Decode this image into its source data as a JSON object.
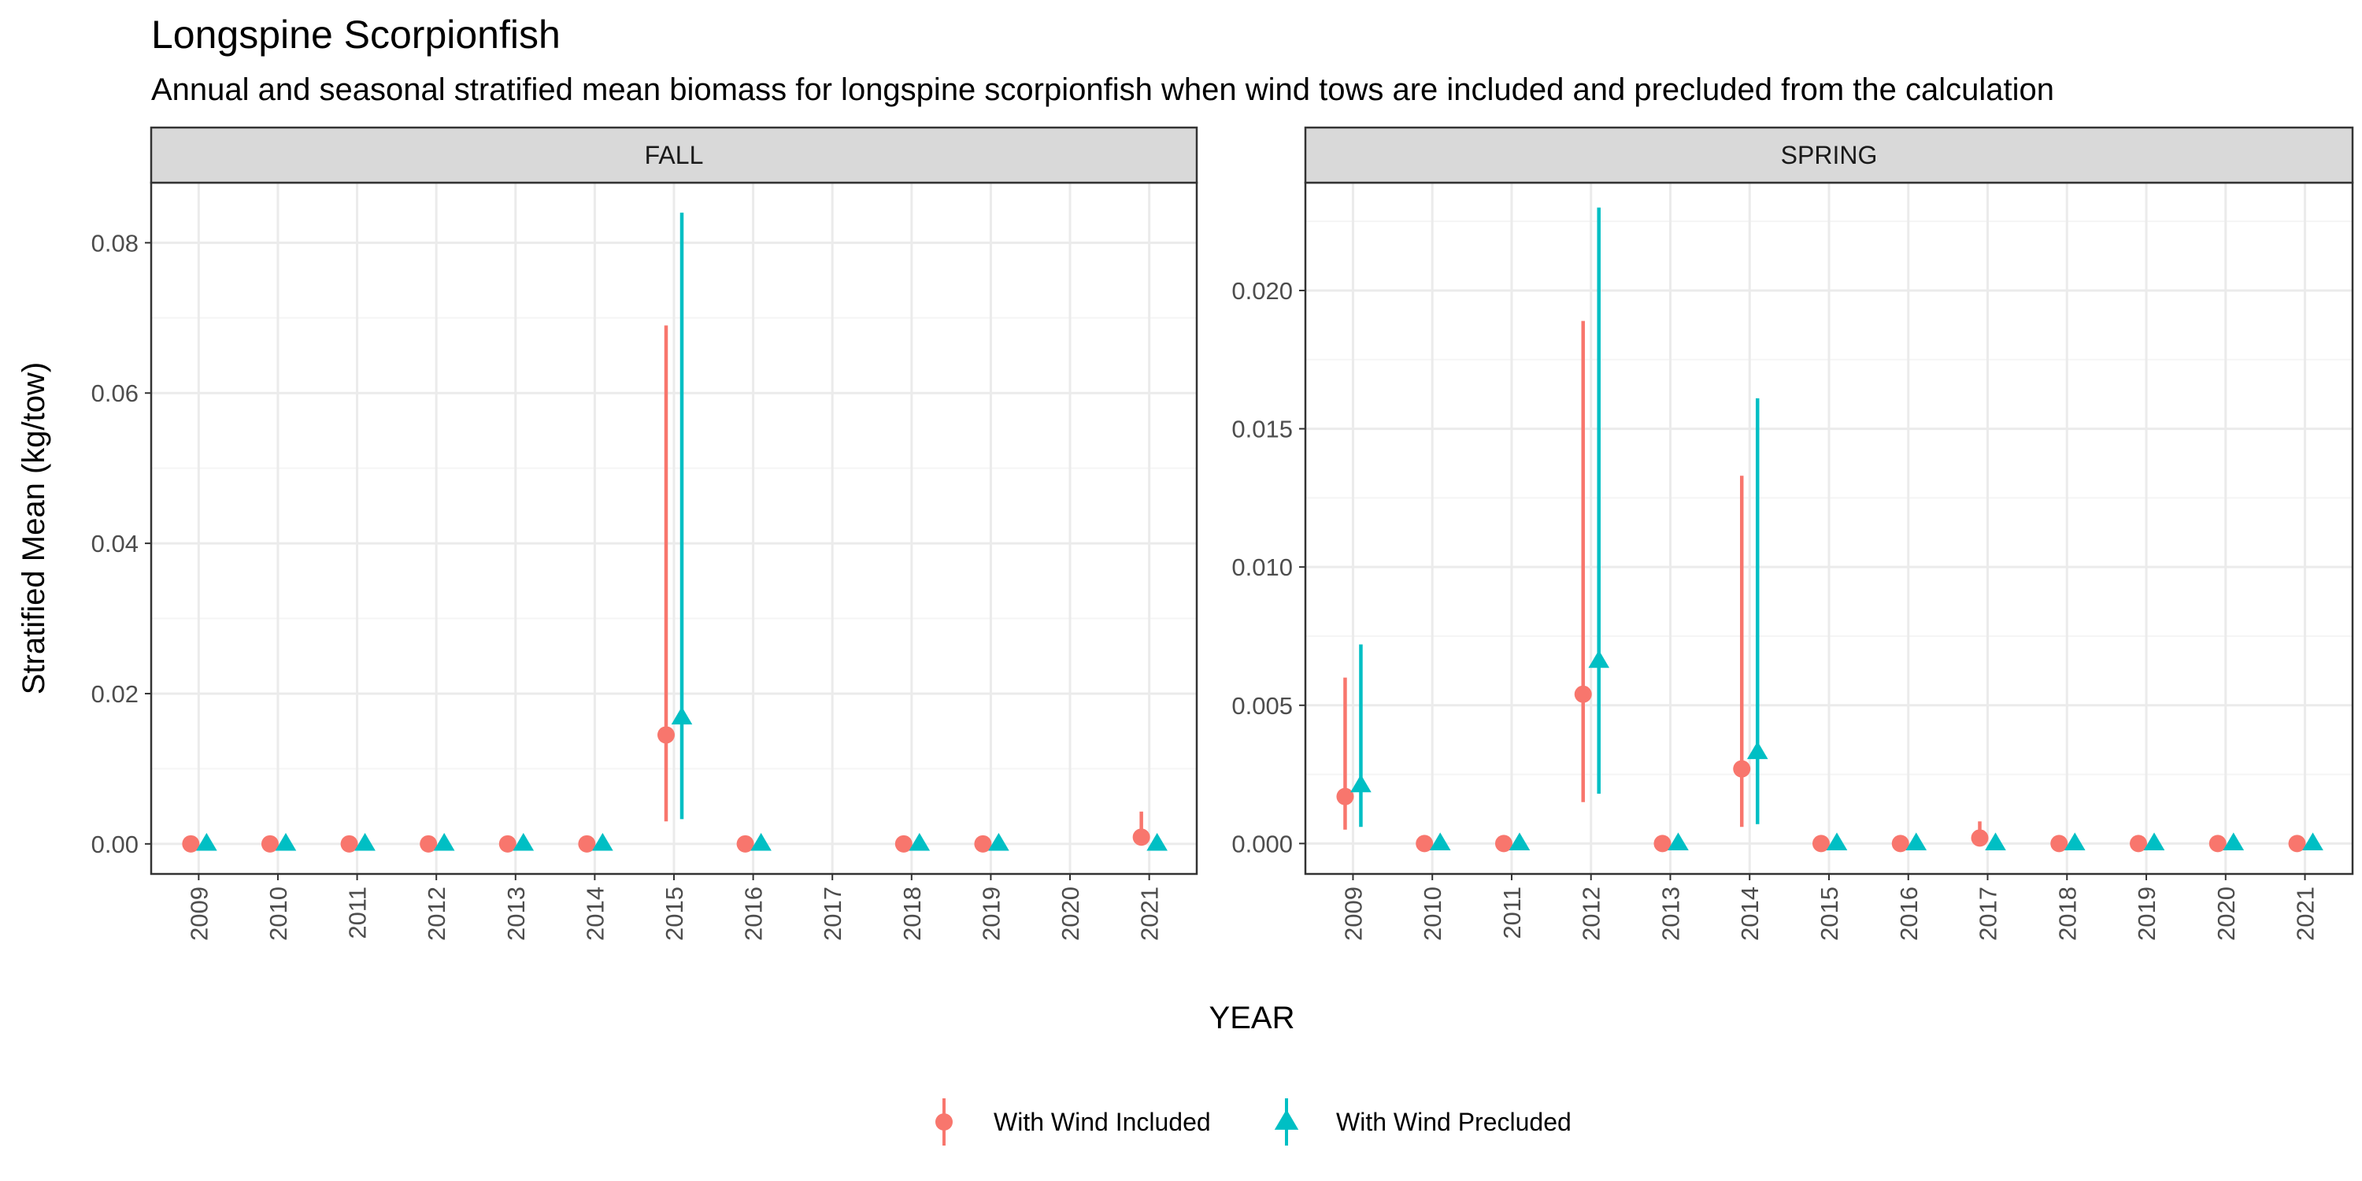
{
  "title": "Longspine Scorpionfish",
  "subtitle": "Annual and seasonal stratified mean biomass for longspine scorpionfish when wind tows are included and precluded from the calculation",
  "colors": {
    "included": "#F8766D",
    "precluded": "#00BFC4",
    "strip_bg": "#D9D9D9",
    "grid_major": "#EBEBEB",
    "grid_minor": "#F5F5F5"
  },
  "chart_data": {
    "type": "scatter",
    "x_label": "YEAR",
    "y_label": "Stratified Mean (kg/tow)",
    "legend": {
      "position": "bottom",
      "entries": [
        {
          "label": "With Wind Included",
          "shape": "circle",
          "color": "#F8766D"
        },
        {
          "label": "With Wind Precluded",
          "shape": "triangle",
          "color": "#00BFC4"
        }
      ]
    },
    "panels": [
      {
        "name": "FALL",
        "categories": [
          "2009",
          "2010",
          "2011",
          "2012",
          "2013",
          "2014",
          "2015",
          "2016",
          "2017",
          "2018",
          "2019",
          "2020",
          "2021"
        ],
        "ylim": [
          -0.004,
          0.088
        ],
        "y_ticks": [
          0,
          0.02,
          0.04,
          0.06,
          0.08
        ],
        "y_tick_labels": [
          "0.00",
          "0.02",
          "0.04",
          "0.06",
          "0.08"
        ],
        "series": [
          {
            "name": "With Wind Included",
            "points": [
              {
                "x": "2009",
                "y": 0
              },
              {
                "x": "2010",
                "y": 0
              },
              {
                "x": "2011",
                "y": 0
              },
              {
                "x": "2012",
                "y": 0
              },
              {
                "x": "2013",
                "y": 0
              },
              {
                "x": "2014",
                "y": 0
              },
              {
                "x": "2015",
                "y": 0.0145,
                "lo": 0.003,
                "hi": 0.069
              },
              {
                "x": "2016",
                "y": 0
              },
              {
                "x": "2018",
                "y": 0
              },
              {
                "x": "2019",
                "y": 0
              },
              {
                "x": "2021",
                "y": 0.0009,
                "lo": 0,
                "hi": 0.0043
              }
            ]
          },
          {
            "name": "With Wind Precluded",
            "points": [
              {
                "x": "2009",
                "y": 0
              },
              {
                "x": "2010",
                "y": 0
              },
              {
                "x": "2011",
                "y": 0
              },
              {
                "x": "2012",
                "y": 0
              },
              {
                "x": "2013",
                "y": 0
              },
              {
                "x": "2014",
                "y": 0
              },
              {
                "x": "2015",
                "y": 0.0168,
                "lo": 0.0033,
                "hi": 0.084
              },
              {
                "x": "2016",
                "y": 0
              },
              {
                "x": "2018",
                "y": 0
              },
              {
                "x": "2019",
                "y": 0
              },
              {
                "x": "2021",
                "y": 0
              }
            ]
          }
        ]
      },
      {
        "name": "SPRING",
        "categories": [
          "2009",
          "2010",
          "2011",
          "2012",
          "2013",
          "2014",
          "2015",
          "2016",
          "2017",
          "2018",
          "2019",
          "2020",
          "2021"
        ],
        "ylim": [
          -0.0011,
          0.0239
        ],
        "y_ticks": [
          0,
          0.005,
          0.01,
          0.015,
          0.02
        ],
        "y_tick_labels": [
          "0.000",
          "0.005",
          "0.010",
          "0.015",
          "0.020"
        ],
        "series": [
          {
            "name": "With Wind Included",
            "points": [
              {
                "x": "2009",
                "y": 0.0017,
                "lo": 0.0005,
                "hi": 0.006
              },
              {
                "x": "2010",
                "y": 0
              },
              {
                "x": "2011",
                "y": 0
              },
              {
                "x": "2012",
                "y": 0.0054,
                "lo": 0.0015,
                "hi": 0.0189
              },
              {
                "x": "2013",
                "y": 0
              },
              {
                "x": "2014",
                "y": 0.0027,
                "lo": 0.0006,
                "hi": 0.0133
              },
              {
                "x": "2015",
                "y": 0
              },
              {
                "x": "2016",
                "y": 0
              },
              {
                "x": "2017",
                "y": 0.0002,
                "lo": 0,
                "hi": 0.0008
              },
              {
                "x": "2018",
                "y": 0
              },
              {
                "x": "2019",
                "y": 0
              },
              {
                "x": "2020",
                "y": 0
              },
              {
                "x": "2021",
                "y": 0
              }
            ]
          },
          {
            "name": "With Wind Precluded",
            "points": [
              {
                "x": "2009",
                "y": 0.0021,
                "lo": 0.0006,
                "hi": 0.0072
              },
              {
                "x": "2010",
                "y": 0
              },
              {
                "x": "2011",
                "y": 0
              },
              {
                "x": "2012",
                "y": 0.0066,
                "lo": 0.0018,
                "hi": 0.023
              },
              {
                "x": "2013",
                "y": 0
              },
              {
                "x": "2014",
                "y": 0.0033,
                "lo": 0.0007,
                "hi": 0.0161
              },
              {
                "x": "2015",
                "y": 0
              },
              {
                "x": "2016",
                "y": 0
              },
              {
                "x": "2017",
                "y": 0
              },
              {
                "x": "2018",
                "y": 0
              },
              {
                "x": "2019",
                "y": 0
              },
              {
                "x": "2020",
                "y": 0
              },
              {
                "x": "2021",
                "y": 0
              }
            ]
          }
        ]
      }
    ]
  }
}
